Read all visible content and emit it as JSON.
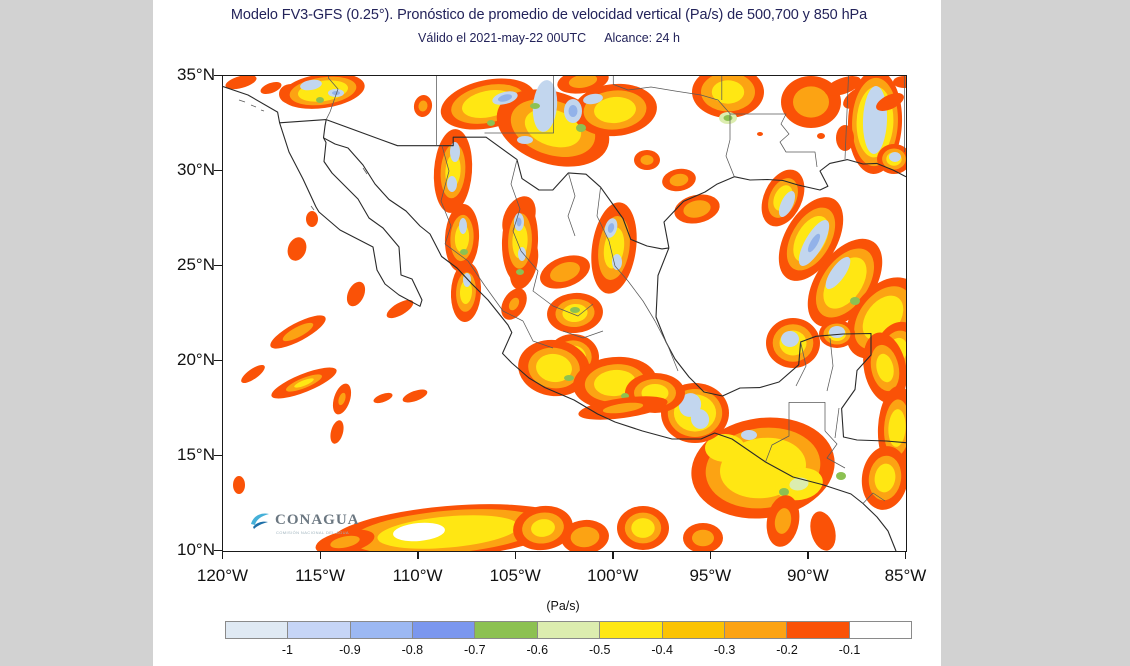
{
  "header": {
    "title": "Modelo FV3-GFS (0.25°). Pronóstico de promedio de velocidad vertical (Pa/s) de 500,700 y 850 hPa",
    "valid": "Válido el 2021-may-22 00UTC",
    "range": "Alcance: 24 h",
    "text_color": "#23235a"
  },
  "map": {
    "lat_labels": [
      "35°N",
      "30°N",
      "25°N",
      "20°N",
      "15°N",
      "10°N"
    ],
    "lon_labels": [
      "120°W",
      "115°W",
      "110°W",
      "105°W",
      "100°W",
      "95°W",
      "90°W",
      "85°W"
    ]
  },
  "colorbar": {
    "unit": "(Pa/s)",
    "tick_labels": [
      "-1",
      "-0.9",
      "-0.8",
      "-0.7",
      "-0.6",
      "-0.5",
      "-0.4",
      "-0.3",
      "-0.2",
      "-0.1"
    ],
    "segment_colors": [
      "#dfe9f3",
      "#c6d5f6",
      "#9cb8f2",
      "#7b97ee",
      "#8cc152",
      "#dcedaf",
      "#ffe713",
      "#fbc303",
      "#fca313",
      "#fa5207",
      "#ffffff"
    ]
  },
  "logo": {
    "name": "CONAGUA",
    "subtext": "COMISIÓN NACIONAL DEL AGUA",
    "swoosh_teal": "#45b0d8",
    "swoosh_blue": "#1d6fa8"
  },
  "chart_data": {
    "type": "heatmap",
    "title": "Modelo FV3-GFS (0.25°). Pronóstico de promedio de velocidad vertical (Pa/s) de 500,700 y 850 hPa",
    "subtitle": "Válido el 2021-may-22 00UTC   Alcance: 24 h",
    "model": "FV3-GFS",
    "resolution_deg": 0.25,
    "variable": "promedio de velocidad vertical (Pa/s) de 500,700 y 850 hPa",
    "valid_time": "2021-may-22 00UTC",
    "lead_hours": 24,
    "lon_range": [
      "120°W",
      "85°W"
    ],
    "lat_range": [
      "10°N",
      "35°N"
    ],
    "lon_ticks": [
      "120°W",
      "115°W",
      "110°W",
      "105°W",
      "100°W",
      "95°W",
      "90°W",
      "85°W"
    ],
    "lat_ticks": [
      "35°N",
      "30°N",
      "25°N",
      "20°N",
      "15°N",
      "10°N"
    ],
    "colorbar_unit": "(Pa/s)",
    "contour_levels_pa_s": [
      -1,
      -0.9,
      -0.8,
      -0.7,
      -0.6,
      -0.5,
      -0.4,
      -0.3,
      -0.2,
      -0.1
    ],
    "palette": [
      "#dfe9f3",
      "#c6d5f6",
      "#9cb8f2",
      "#7b97ee",
      "#8cc152",
      "#dcedaf",
      "#ffe713",
      "#fbc303",
      "#fca313",
      "#fa5207",
      "#ffffff"
    ],
    "legend_position": "bottom",
    "grid": false,
    "region": "México, sur de EE.UU., Golfo de México y Centroamérica"
  }
}
